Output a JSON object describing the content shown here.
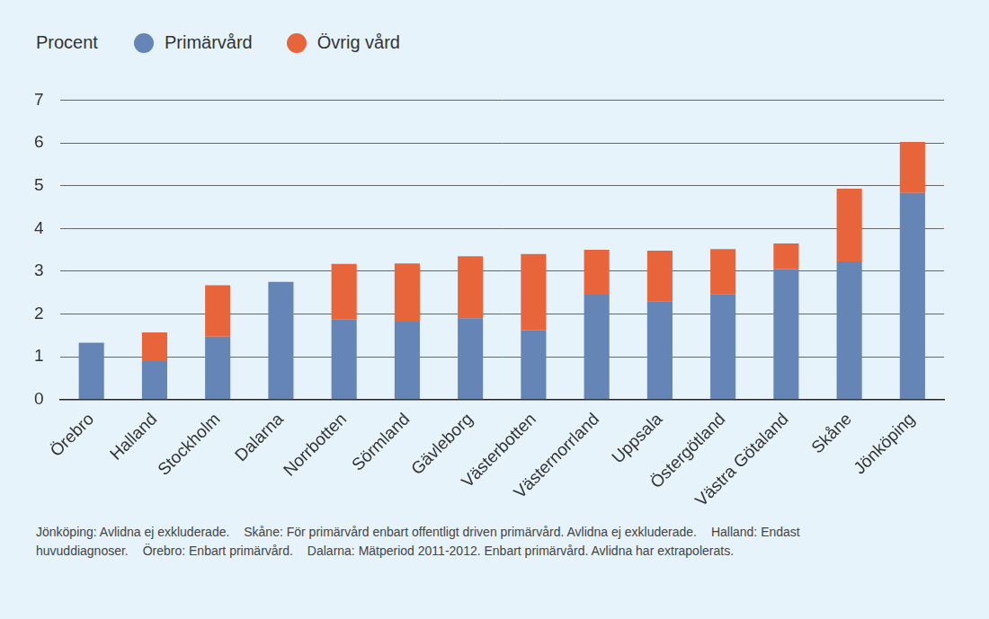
{
  "chart_data": {
    "type": "bar",
    "ylabel": "Procent",
    "categories": [
      "Örebro",
      "Halland",
      "Stockholm",
      "Dalarna",
      "Norrbotten",
      "Sörmland",
      "Gävleborg",
      "Västerbotten",
      "Västernorrland",
      "Uppsala",
      "Östergötland",
      "Västra Götaland",
      "Skåne",
      "Jönköping"
    ],
    "series": [
      {
        "name": "Primärvård",
        "color": "#6585b6",
        "values": [
          1.33,
          0.9,
          1.47,
          2.75,
          1.87,
          1.82,
          1.9,
          1.62,
          2.45,
          2.3,
          2.47,
          3.05,
          3.23,
          4.83
        ]
      },
      {
        "name": "Övrig vård",
        "color": "#e8643a",
        "values": [
          0,
          0.67,
          1.2,
          0,
          1.3,
          1.36,
          1.45,
          1.78,
          1.05,
          1.18,
          1.05,
          0.6,
          1.7,
          1.19
        ]
      }
    ],
    "stacked": true,
    "ylim": [
      0,
      7
    ],
    "yticks": [
      0,
      1,
      2,
      3,
      4,
      5,
      6,
      7
    ],
    "grid": true,
    "notes": [
      "Jönköping: Avlidna ej exkluderade.",
      "Skåne: För primärvård enbart offentligt driven primärvård. Avlidna ej exkluderade.",
      "Halland: Endast huvuddiagnoser.",
      "Örebro: Enbart primärvård.",
      "Dalarna: Mätperiod 2011-2012. Enbart primärvård. Avlidna har extrapolerats."
    ]
  }
}
